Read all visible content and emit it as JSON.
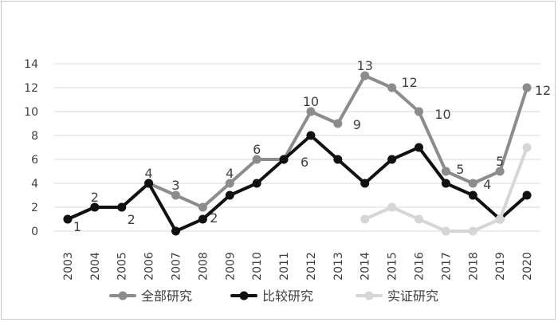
{
  "chart_data": {
    "type": "line",
    "categories": [
      "2003",
      "2004",
      "2005",
      "2006",
      "2007",
      "2008",
      "2009",
      "2010",
      "2011",
      "2012",
      "2013",
      "2014",
      "2015",
      "2016",
      "2017",
      "2018",
      "2019",
      "2020"
    ],
    "series": [
      {
        "name": "全部研究",
        "color": "#8c8c8c",
        "values": [
          1,
          2,
          2,
          4,
          3,
          2,
          4,
          6,
          6,
          10,
          9,
          13,
          12,
          10,
          5,
          4,
          5,
          12
        ],
        "data_labels": [
          "1",
          "2",
          "2",
          "4",
          "3",
          "2",
          "4",
          "6",
          "6",
          "10",
          "9",
          "13",
          "12",
          "10",
          "5",
          "4",
          "5",
          "12"
        ]
      },
      {
        "name": "比较研究",
        "color": "#111111",
        "values": [
          1,
          2,
          2,
          4,
          0,
          1,
          3,
          4,
          6,
          8,
          6,
          4,
          6,
          7,
          4,
          3,
          1,
          3
        ]
      },
      {
        "name": "实证研究",
        "color": "#d6d6d6",
        "values": [
          null,
          null,
          null,
          null,
          null,
          null,
          null,
          null,
          null,
          null,
          null,
          1,
          2,
          1,
          0,
          0,
          1,
          7
        ]
      }
    ],
    "y_ticks": [
      "0",
      "2",
      "4",
      "6",
      "8",
      "10",
      "12",
      "14"
    ],
    "ylim": [
      0,
      14
    ],
    "grid": true,
    "legend_position": "bottom"
  }
}
